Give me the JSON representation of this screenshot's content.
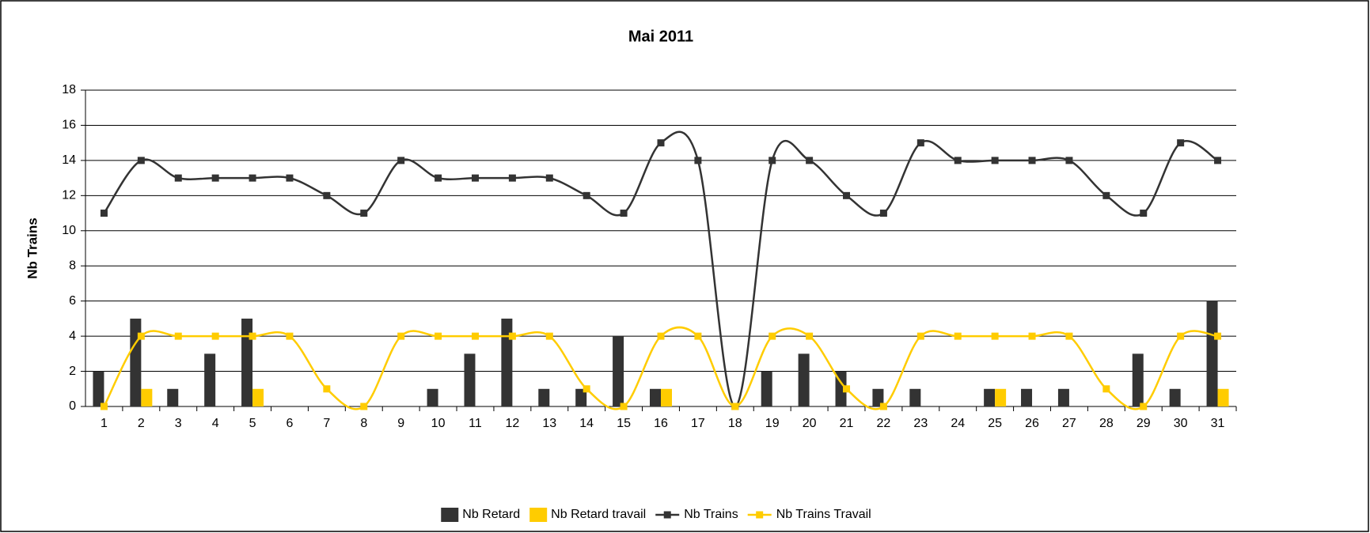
{
  "chart_data": {
    "type": "combo",
    "title": "Mai 2011",
    "y_label": "Nb Trains",
    "categories": [
      "1",
      "2",
      "3",
      "4",
      "5",
      "6",
      "7",
      "8",
      "9",
      "10",
      "11",
      "12",
      "13",
      "14",
      "15",
      "16",
      "17",
      "18",
      "19",
      "20",
      "21",
      "22",
      "23",
      "24",
      "25",
      "26",
      "27",
      "28",
      "29",
      "30",
      "31"
    ],
    "series": [
      {
        "name": "Nb Retard",
        "type": "bar",
        "color": "#333333",
        "values": [
          2,
          5,
          1,
          3,
          5,
          0,
          0,
          0,
          0,
          1,
          3,
          5,
          1,
          1,
          4,
          1,
          0,
          0,
          2,
          3,
          2,
          1,
          1,
          0,
          1,
          1,
          1,
          0,
          3,
          1,
          6
        ]
      },
      {
        "name": "Nb Retard travail",
        "type": "bar",
        "color": "#ffcc00",
        "values": [
          0,
          1,
          0,
          0,
          1,
          0,
          0,
          0,
          0,
          0,
          0,
          0,
          0,
          0,
          0,
          1,
          0,
          0,
          0,
          0,
          0,
          0,
          0,
          0,
          1,
          0,
          0,
          0,
          0,
          0,
          1
        ]
      },
      {
        "name": "Nb Trains",
        "type": "line",
        "color": "#333333",
        "values": [
          11,
          14,
          13,
          13,
          13,
          13,
          12,
          11,
          14,
          13,
          13,
          13,
          13,
          12,
          11,
          15,
          14,
          0,
          14,
          14,
          12,
          11,
          15,
          14,
          14,
          14,
          14,
          12,
          11,
          15,
          14
        ]
      },
      {
        "name": "Nb Trains Travail",
        "type": "line",
        "color": "#ffcc00",
        "values": [
          0,
          4,
          4,
          4,
          4,
          4,
          1,
          0,
          4,
          4,
          4,
          4,
          4,
          1,
          0,
          4,
          4,
          0,
          4,
          4,
          1,
          0,
          4,
          4,
          4,
          4,
          4,
          1,
          0,
          4,
          4
        ]
      }
    ],
    "ylim": [
      0,
      18
    ],
    "yticks": [
      0,
      2,
      4,
      6,
      8,
      10,
      12,
      14,
      16,
      18
    ],
    "grid": true,
    "legend": "bottom"
  }
}
